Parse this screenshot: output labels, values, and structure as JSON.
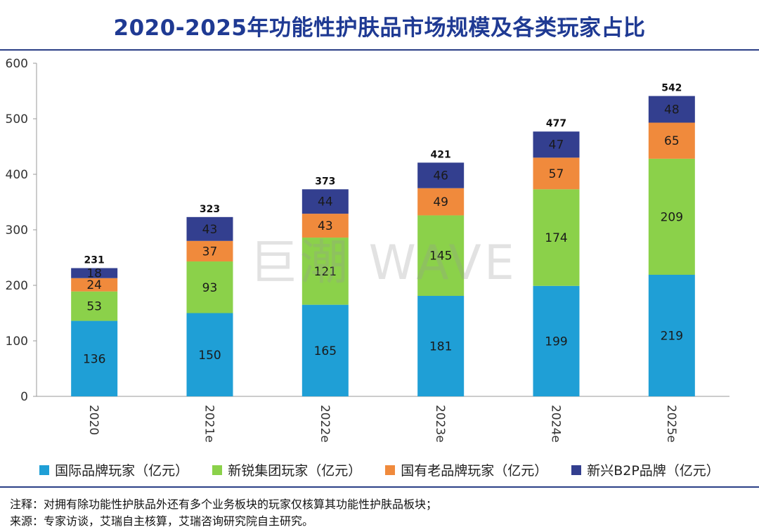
{
  "title": "2020-2025年功能性护肤品市场规模及各类玩家占比",
  "watermark": "巨潮 WAVE",
  "colors": {
    "series": [
      "#1f9fd6",
      "#8bd14a",
      "#f08a3c",
      "#333f8f"
    ],
    "axis": "#9a9a9a",
    "rule": "#2b3f86",
    "title": "#1f3a93"
  },
  "chart_data": {
    "type": "bar",
    "stacked": true,
    "categories": [
      "2020",
      "2021e",
      "2022e",
      "2023e",
      "2024e",
      "2025e"
    ],
    "series": [
      {
        "name": "国际品牌玩家（亿元）",
        "values": [
          136,
          150,
          165,
          181,
          199,
          219
        ]
      },
      {
        "name": "新锐集团玩家（亿元）",
        "values": [
          53,
          93,
          121,
          145,
          174,
          209
        ]
      },
      {
        "name": "国有老品牌玩家（亿元）",
        "values": [
          24,
          37,
          43,
          49,
          57,
          65
        ]
      },
      {
        "name": "新兴B2P品牌（亿元）",
        "values": [
          18,
          43,
          44,
          46,
          47,
          48
        ]
      }
    ],
    "totals": [
      231,
      323,
      373,
      421,
      477,
      542
    ],
    "ylim": [
      0,
      600
    ],
    "yticks": [
      0,
      100,
      200,
      300,
      400,
      500,
      600
    ],
    "legend": "bottom",
    "grid": false
  },
  "notes": {
    "line1": "注释：对拥有除功能性护肤品外还有多个业务板块的玩家仅核算其功能性护肤品板块；",
    "line2": "来源：专家访谈，艾瑞自主核算，艾瑞咨询研究院自主研究。"
  }
}
